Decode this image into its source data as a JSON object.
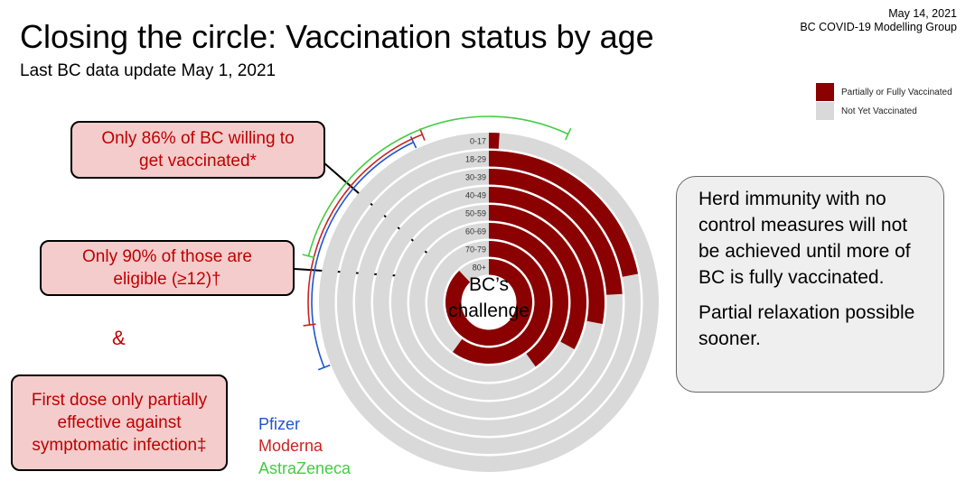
{
  "header": {
    "title": "Closing the circle: Vaccination status by age",
    "subtitle": "Last BC data update May 1, 2021",
    "date": "May 14, 2021",
    "org": "BC COVID-19 Modelling Group"
  },
  "callouts": {
    "willing": "Only 86% of BC willing to get vaccinated*",
    "eligible": "Only 90% of those are eligible (≥12)†",
    "ampersand": "&",
    "first_dose": "First dose only partially effective against symptomatic infection‡"
  },
  "herd_box": {
    "line1": "Herd immunity with no control measures will not be achieved until more of BC is fully vaccinated.",
    "line2": "Partial relaxation possible sooner."
  },
  "vaccines": {
    "pfizer": "Pfizer",
    "moderna": "Moderna",
    "astrazeneca": "AstraZeneca"
  },
  "colors": {
    "vaccinated": "#8b0000",
    "not_vaccinated": "#d9d9d9",
    "callout_text": "#c00000",
    "pfizer": "#2255cc",
    "moderna": "#cc2222",
    "astrazeneca": "#44cc44"
  },
  "chart_data": {
    "type": "radial-bar",
    "center_label": "BC’s challenge",
    "legend": [
      "Partially or Fully Vaccinated",
      "Not Yet Vaccinated"
    ],
    "legend_position": "top-right",
    "categories": [
      "0-17",
      "18-29",
      "30-39",
      "40-49",
      "50-59",
      "60-69",
      "70-79",
      "80+"
    ],
    "series": [
      {
        "name": "Partially or Fully Vaccinated",
        "values": [
          1,
          22,
          24,
          28,
          33,
          40,
          60,
          88
        ]
      },
      {
        "name": "Not Yet Vaccinated",
        "values": [
          99,
          78,
          76,
          72,
          67,
          60,
          40,
          12
        ]
      }
    ],
    "vaccine_arcs": [
      {
        "name": "Pfizer",
        "start_pct": 69,
        "end_pct": 93
      },
      {
        "name": "Moderna",
        "start_pct": 73,
        "end_pct": 94
      },
      {
        "name": "AstraZeneca",
        "start_pct": 79,
        "end_pct": 107
      }
    ]
  }
}
